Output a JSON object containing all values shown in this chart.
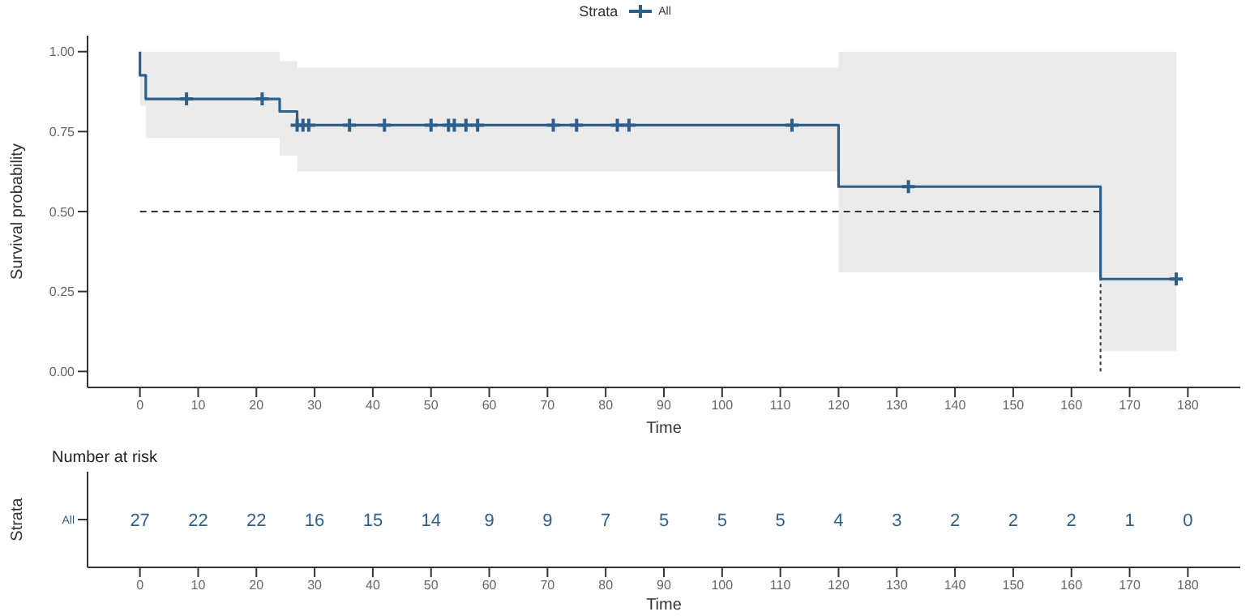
{
  "chart_data": [
    {
      "type": "step",
      "legend_title": "Strata",
      "legend": "top",
      "xlabel": "Time",
      "ylabel": "Survival probability",
      "xlim": [
        -9,
        189
      ],
      "xticks": [
        0,
        10,
        20,
        30,
        40,
        50,
        60,
        70,
        80,
        90,
        100,
        110,
        120,
        130,
        140,
        150,
        160,
        170,
        180
      ],
      "ylim": [
        -0.05,
        1.05
      ],
      "yticks": [
        {
          "value": 0,
          "label": "0.00"
        },
        {
          "value": 0.25,
          "label": "0.25"
        },
        {
          "value": 0.5,
          "label": "0.50"
        },
        {
          "value": 0.75,
          "label": "0.75"
        },
        {
          "value": 1,
          "label": "1.00"
        }
      ],
      "grid": false,
      "series": [
        {
          "name": "All",
          "type": "step",
          "color": "#2e5f8a",
          "x": [
            0,
            0,
            1,
            24,
            27,
            120,
            165,
            178
          ],
          "values": [
            1,
            0.926,
            0.852,
            0.813,
            0.77,
            0.578,
            0.289,
            0.289
          ],
          "lower": [
            1,
            0.83,
            0.73,
            0.675,
            0.625,
            0.31,
            0.065,
            0.065
          ],
          "upper": [
            1,
            1,
            1,
            0.97,
            0.95,
            1,
            1,
            1
          ]
        },
        {
          "type": "scatter",
          "color": "#2e5f8a",
          "marker": "cross",
          "x": [
            8,
            21,
            27,
            28,
            29,
            36,
            42,
            50,
            53,
            54,
            56,
            58,
            71,
            75,
            82,
            84,
            112,
            132,
            178
          ],
          "values": [
            0.852,
            0.852,
            0.77,
            0.77,
            0.77,
            0.77,
            0.77,
            0.77,
            0.77,
            0.77,
            0.77,
            0.77,
            0.77,
            0.77,
            0.77,
            0.77,
            0.77,
            0.578,
            0.289
          ]
        }
      ],
      "ref_lines": [
        {
          "axis": "y",
          "value": 0.5,
          "line_style": "dashed"
        },
        {
          "axis": "x",
          "value": 165,
          "line_style": "dotted"
        }
      ]
    },
    {
      "type": "heatmap",
      "title": "Number at risk",
      "xlabel": "Time",
      "ylabel": "Strata",
      "categories": [
        "0",
        "10",
        "20",
        "30",
        "40",
        "50",
        "60",
        "70",
        "80",
        "90",
        "100",
        "110",
        "120",
        "130",
        "140",
        "150",
        "160",
        "170",
        "180"
      ],
      "y_categories": [
        "All"
      ],
      "cells": [
        [
          27,
          22,
          22,
          16,
          15,
          14,
          9,
          9,
          7,
          5,
          5,
          5,
          4,
          3,
          2,
          2,
          2,
          1,
          0
        ]
      ],
      "color": "#2e5f8a",
      "data_labels": true
    }
  ]
}
